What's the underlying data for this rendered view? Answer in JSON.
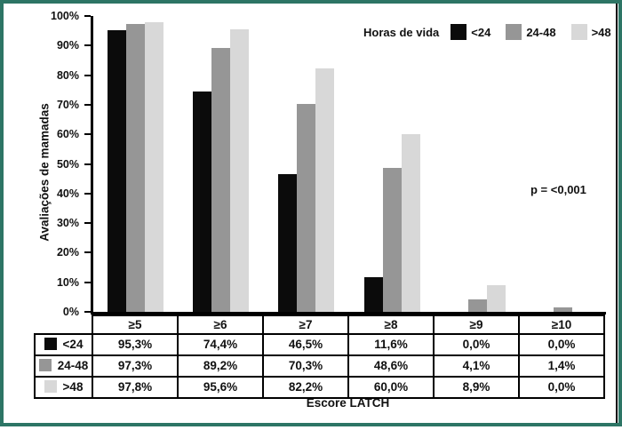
{
  "frame": {
    "border_color": "#2d7565",
    "background": "#ffffff"
  },
  "chart_data": {
    "type": "bar",
    "categories": [
      "≥5",
      "≥6",
      "≥7",
      "≥8",
      "≥9",
      "≥10"
    ],
    "series": [
      {
        "name": "<24",
        "color": "#0b0b0b",
        "values": [
          95.3,
          74.4,
          46.5,
          11.6,
          0.0,
          0.0
        ]
      },
      {
        "name": "24-48",
        "color": "#969696",
        "values": [
          97.3,
          89.2,
          70.3,
          48.6,
          4.1,
          1.4
        ]
      },
      {
        "name": ">48",
        "color": "#d8d8d8",
        "values": [
          97.8,
          95.6,
          82.2,
          60.0,
          8.9,
          0.0
        ]
      }
    ],
    "ylabel": "Avaliações de mamadas",
    "xlabel": "Escore LATCH",
    "ylim": [
      0,
      100
    ],
    "y_ticks": [
      "0%",
      "10%",
      "20%",
      "30%",
      "40%",
      "50%",
      "60%",
      "70%",
      "80%",
      "90%",
      "100%"
    ],
    "grid": false,
    "legend": {
      "title": "Horas de vida",
      "position": "top-right",
      "entries": [
        "<24",
        "24-48",
        ">48"
      ]
    },
    "annotation": "p = <0,001"
  },
  "table": {
    "header": [
      "≥5",
      "≥6",
      "≥7",
      "≥8",
      "≥9",
      "≥10"
    ],
    "rows": [
      {
        "label": "<24",
        "swatch_color": "#0b0b0b",
        "values": [
          "95,3%",
          "74,4%",
          "46,5%",
          "11,6%",
          "0,0%",
          "0,0%"
        ]
      },
      {
        "label": "24-48",
        "swatch_color": "#969696",
        "values": [
          "97,3%",
          "89,2%",
          "70,3%",
          "48,6%",
          "4,1%",
          "1,4%"
        ]
      },
      {
        "label": ">48",
        "swatch_color": "#d8d8d8",
        "values": [
          "97,8%",
          "95,6%",
          "82,2%",
          "60,0%",
          "8,9%",
          "0,0%"
        ]
      }
    ]
  }
}
